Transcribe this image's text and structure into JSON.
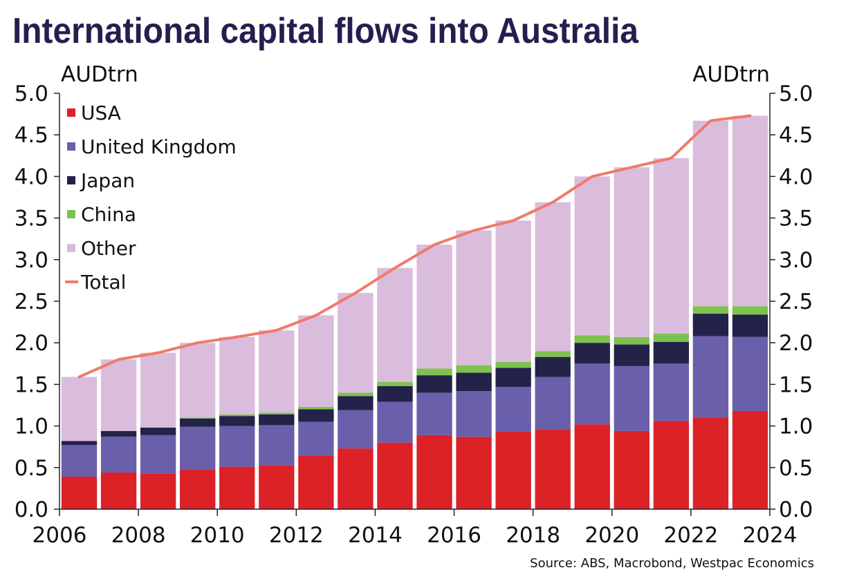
{
  "chart_data": {
    "type": "bar",
    "stacked": true,
    "title": "International capital flows into Australia",
    "ylabel_left": "AUDtrn",
    "ylabel_right": "AUDtrn",
    "source": "Source: ABS, Macrobond, Westpac Economics",
    "xlim": [
      2006,
      2024
    ],
    "ylim": [
      0,
      5
    ],
    "x_ticks": [
      "2006",
      "2008",
      "2010",
      "2012",
      "2014",
      "2016",
      "2018",
      "2020",
      "2022",
      "2024"
    ],
    "y_ticks": [
      "0.0",
      "0.5",
      "1.0",
      "1.5",
      "2.0",
      "2.5",
      "3.0",
      "3.5",
      "4.0",
      "4.5",
      "5.0"
    ],
    "categories": [
      "2006",
      "2007",
      "2008",
      "2009",
      "2010",
      "2011",
      "2012",
      "2013",
      "2014",
      "2015",
      "2016",
      "2017",
      "2018",
      "2019",
      "2020",
      "2021",
      "2022",
      "2023"
    ],
    "series": [
      {
        "name": "USA",
        "color": "#dc2127",
        "values": [
          0.39,
          0.44,
          0.43,
          0.48,
          0.51,
          0.53,
          0.64,
          0.73,
          0.8,
          0.89,
          0.87,
          0.93,
          0.96,
          1.02,
          0.94,
          1.06,
          1.1,
          1.18
        ]
      },
      {
        "name": "United Kingdom",
        "color": "#6a5fab",
        "values": [
          0.38,
          0.43,
          0.46,
          0.51,
          0.49,
          0.48,
          0.41,
          0.46,
          0.49,
          0.51,
          0.55,
          0.54,
          0.63,
          0.73,
          0.78,
          0.69,
          0.98,
          0.89
        ]
      },
      {
        "name": "Japan",
        "color": "#232249",
        "values": [
          0.05,
          0.07,
          0.09,
          0.1,
          0.12,
          0.13,
          0.15,
          0.17,
          0.19,
          0.21,
          0.22,
          0.23,
          0.24,
          0.25,
          0.26,
          0.26,
          0.27,
          0.27
        ]
      },
      {
        "name": "China",
        "color": "#7dc14e",
        "values": [
          0.0,
          0.0,
          0.0,
          0.01,
          0.02,
          0.02,
          0.03,
          0.04,
          0.05,
          0.08,
          0.09,
          0.07,
          0.07,
          0.09,
          0.09,
          0.1,
          0.09,
          0.1
        ]
      },
      {
        "name": "Other",
        "color": "#dabcdc",
        "values": [
          0.77,
          0.86,
          0.9,
          0.9,
          0.93,
          0.99,
          1.1,
          1.2,
          1.37,
          1.49,
          1.62,
          1.7,
          1.79,
          1.91,
          2.04,
          2.11,
          2.23,
          2.29
        ]
      }
    ],
    "total": {
      "name": "Total",
      "color": "#f07a6a",
      "values": [
        1.59,
        1.8,
        1.88,
        2.0,
        2.07,
        2.15,
        2.33,
        2.6,
        2.9,
        3.18,
        3.35,
        3.47,
        3.69,
        4.0,
        4.11,
        4.22,
        4.67,
        4.73
      ]
    },
    "legend": [
      "USA",
      "United Kingdom",
      "Japan",
      "China",
      "Other",
      "Total"
    ],
    "legend_position": "top-left"
  }
}
